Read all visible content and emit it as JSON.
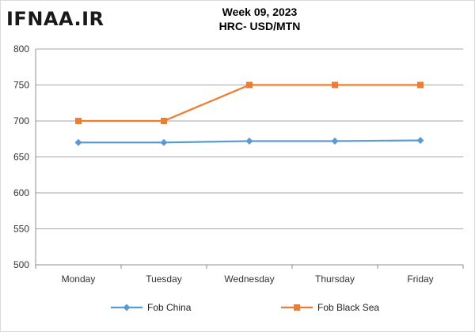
{
  "logo": {
    "text": "IFNAA.IR"
  },
  "chart_data": {
    "type": "line",
    "title": "Week 09, 2023",
    "subtitle": "HRC- USD/MTN",
    "categories": [
      "Monday",
      "Tuesday",
      "Wednesday",
      "Thursday",
      "Friday"
    ],
    "series": [
      {
        "name": "Fob China",
        "values": [
          670,
          670,
          672,
          672,
          673
        ],
        "color": "#5b9bd5",
        "marker": "diamond"
      },
      {
        "name": "Fob Black Sea",
        "values": [
          700,
          700,
          750,
          750,
          750
        ],
        "color": "#ed7d31",
        "marker": "square"
      }
    ],
    "ylim": [
      500,
      800
    ],
    "yticks": [
      500,
      550,
      600,
      650,
      700,
      750,
      800
    ],
    "grid": true,
    "legend_position": "bottom"
  }
}
